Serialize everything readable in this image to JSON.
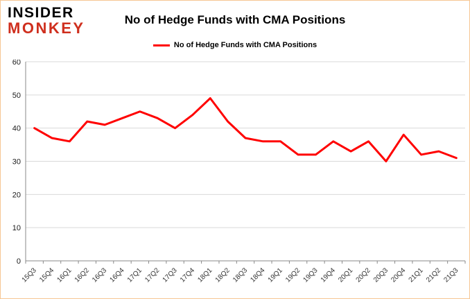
{
  "logo": {
    "line1": "INSIDER",
    "line2": "MONKEY"
  },
  "header": {
    "title": "No of Hedge Funds with CMA Positions"
  },
  "legend": {
    "label": "No of Hedge Funds with CMA Positions",
    "color": "#ff0000"
  },
  "chart_data": {
    "type": "line",
    "title": "No of Hedge Funds with CMA Positions",
    "categories": [
      "15Q3",
      "15Q4",
      "16Q1",
      "16Q2",
      "16Q3",
      "16Q4",
      "17Q1",
      "17Q2",
      "17Q3",
      "17Q4",
      "18Q1",
      "18Q2",
      "18Q3",
      "18Q4",
      "19Q1",
      "19Q2",
      "19Q3",
      "19Q4",
      "20Q1",
      "20Q2",
      "20Q3",
      "20Q4",
      "21Q1",
      "21Q2",
      "21Q3"
    ],
    "values": [
      40,
      37,
      36,
      42,
      41,
      43,
      45,
      43,
      40,
      44,
      49,
      42,
      37,
      36,
      36,
      32,
      32,
      36,
      33,
      36,
      30,
      38,
      32,
      33,
      31
    ],
    "xlabel": "",
    "ylabel": "",
    "ylim": [
      0,
      60
    ],
    "yticks": [
      0,
      10,
      20,
      30,
      40,
      50,
      60
    ],
    "grid": true,
    "legend_position": "top",
    "line_color": "#ff0000"
  }
}
